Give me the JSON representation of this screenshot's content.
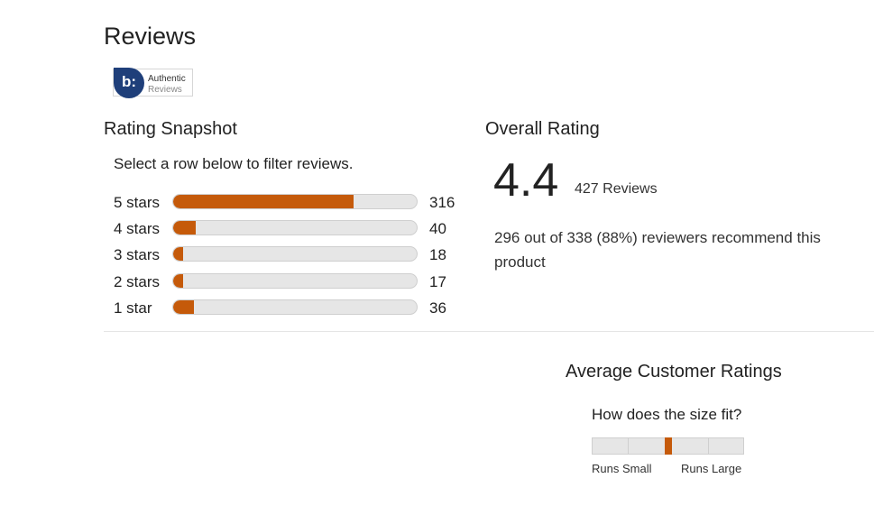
{
  "header": {
    "title": "Reviews"
  },
  "badge": {
    "logo_text": "b:",
    "line1": "Authentic",
    "line2": "Reviews",
    "brand_color": "#1f3f7a"
  },
  "snapshot": {
    "title": "Rating Snapshot",
    "subtitle": "Select a row below to filter reviews.",
    "bar_color": "#c55a0a",
    "rows": [
      {
        "label": "5 stars",
        "count": "316",
        "fraction": 0.74
      },
      {
        "label": "4 stars",
        "count": "40",
        "fraction": 0.094
      },
      {
        "label": "3 stars",
        "count": "18",
        "fraction": 0.042
      },
      {
        "label": "2 stars",
        "count": "17",
        "fraction": 0.04
      },
      {
        "label": "1 star",
        "count": "36",
        "fraction": 0.084
      }
    ]
  },
  "overall": {
    "title": "Overall Rating",
    "rating": "4.4",
    "reviews": "427 Reviews",
    "recommend": "296 out of 338 (88%) reviewers recommend this product"
  },
  "average": {
    "title": "Average Customer Ratings",
    "question": "How does the size fit?",
    "low_label": "Runs Small",
    "high_label": "Runs Large",
    "position": 0.5
  }
}
